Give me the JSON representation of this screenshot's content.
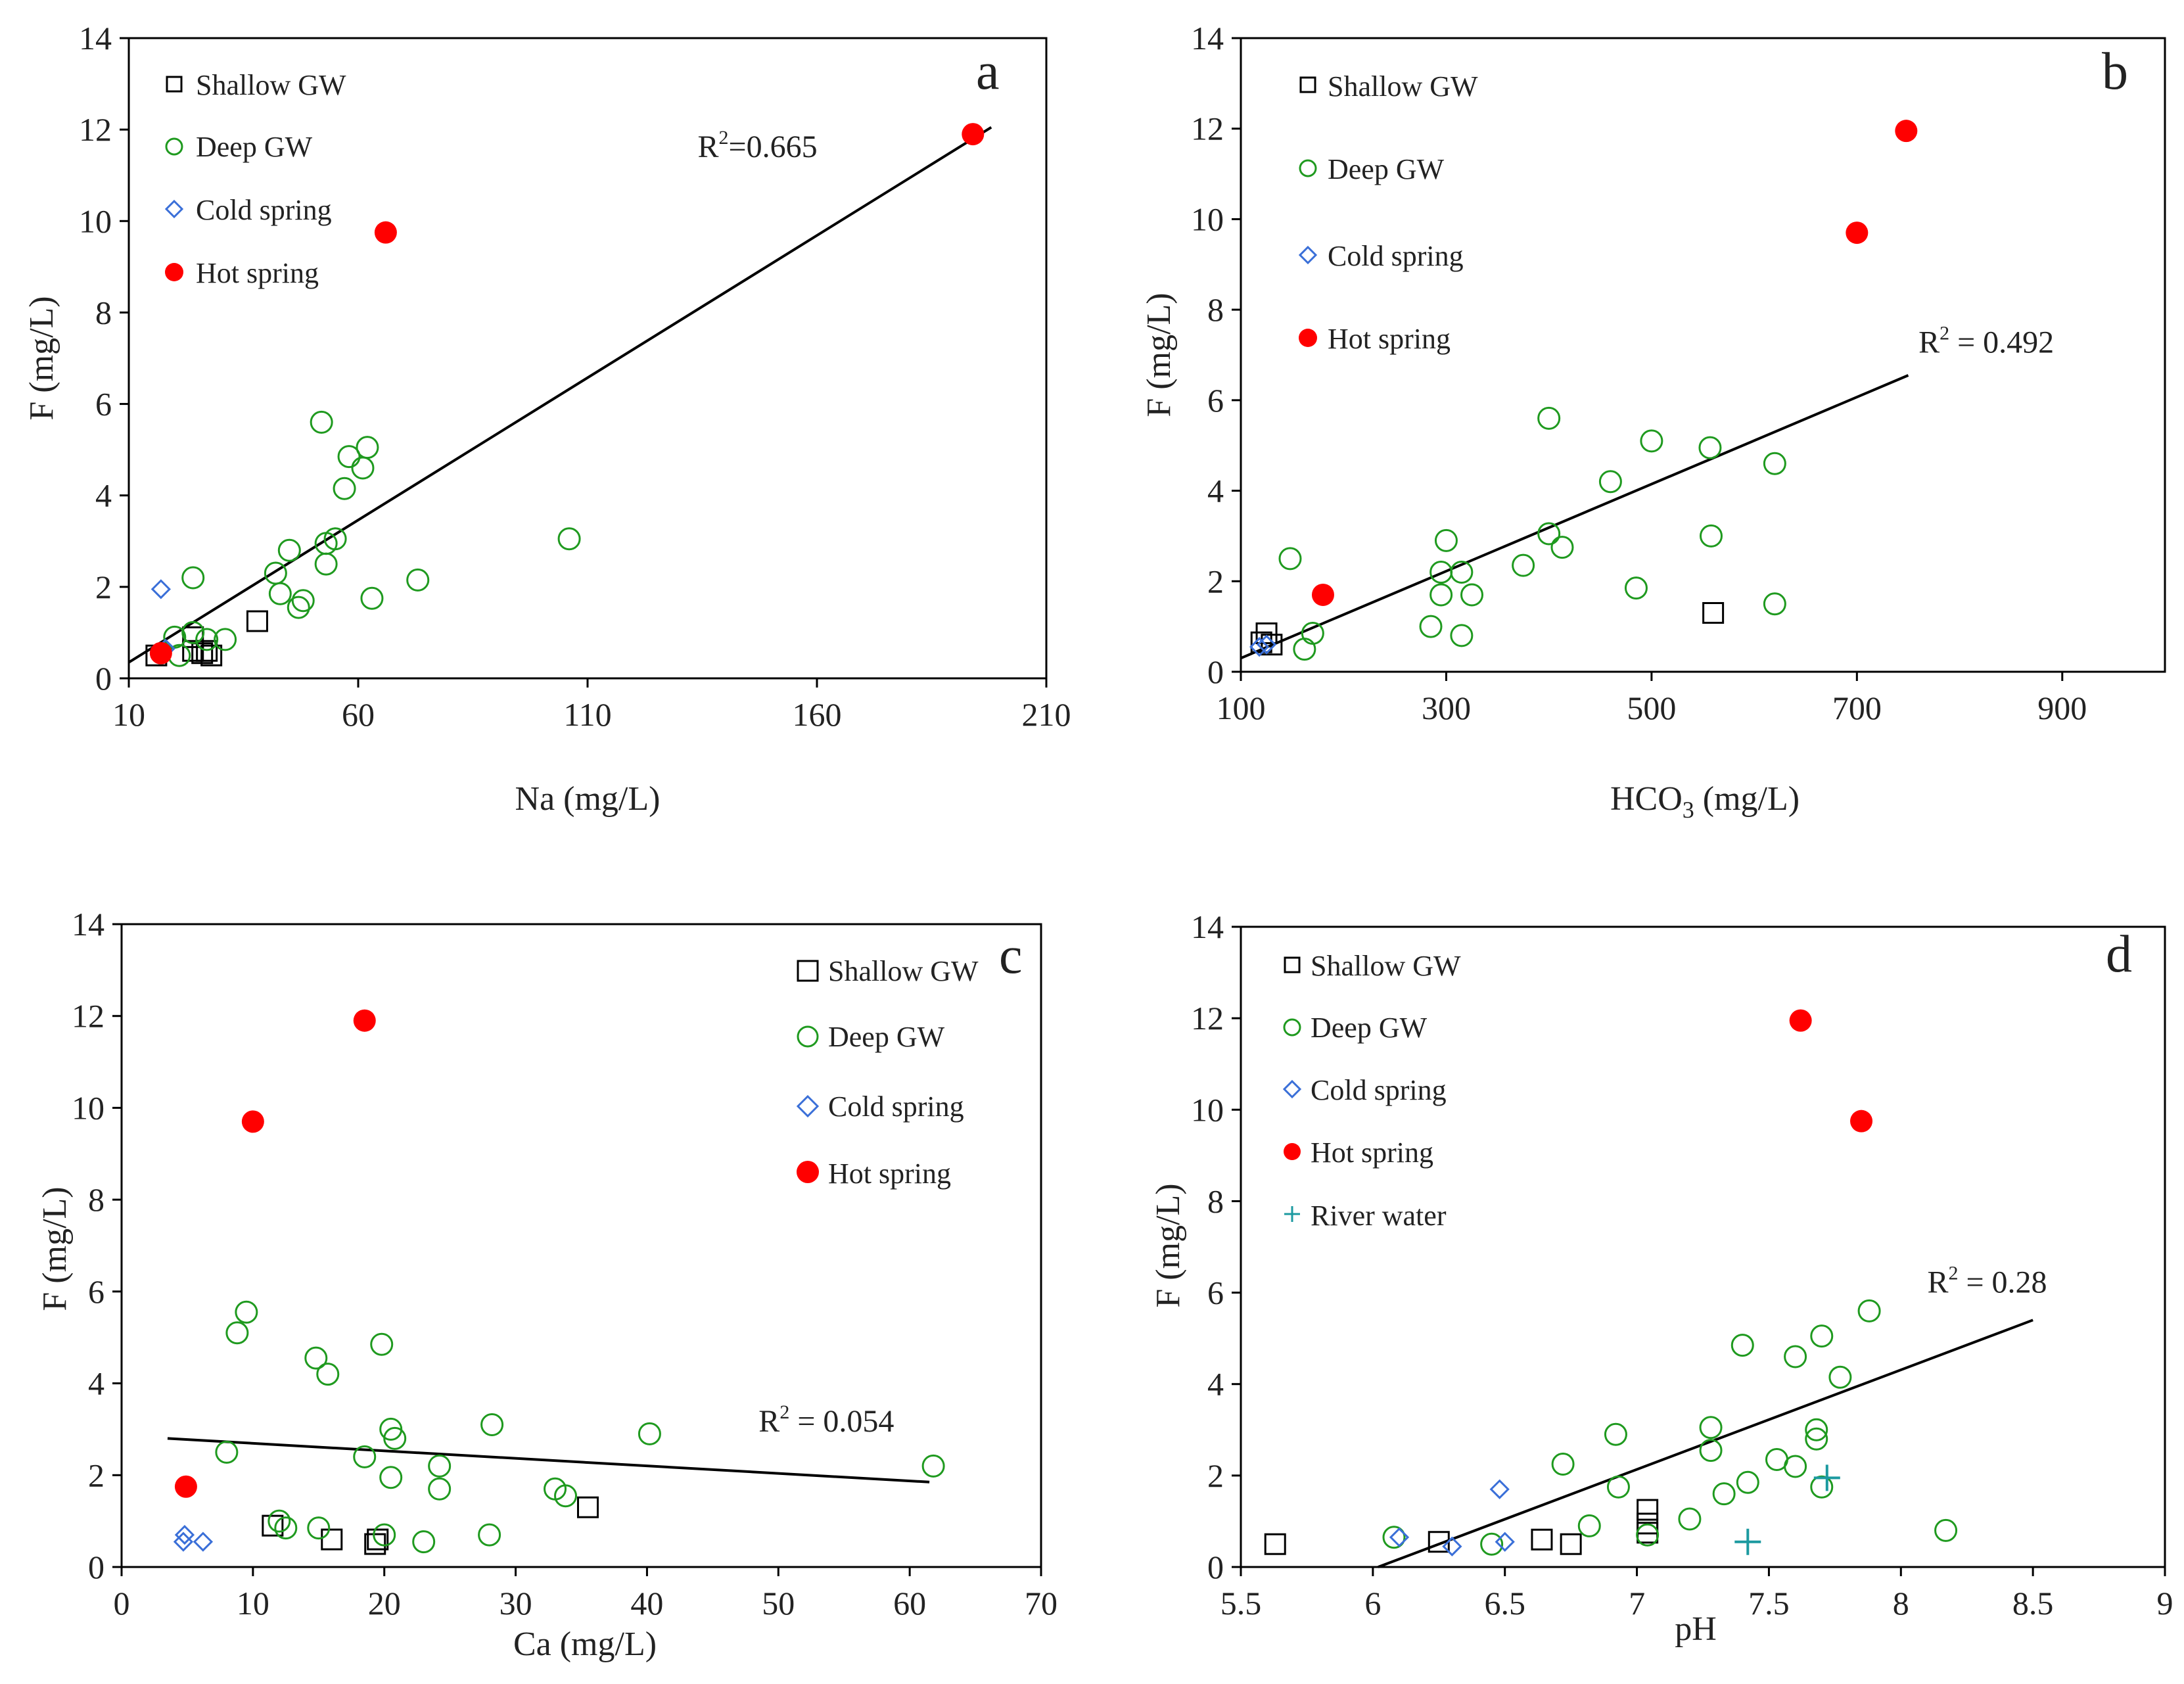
{
  "figure": {
    "description_panels": [
      "a",
      "b",
      "c",
      "d"
    ]
  },
  "colors": {
    "shallow": "#000000",
    "deep": "#1f9a1f",
    "cold": "#3a6fd8",
    "hot": "#ff0000",
    "river": "#1c9aa0",
    "line": "#000000",
    "axis": "#000000"
  },
  "chart_data": [
    {
      "id": "a",
      "type": "scatter",
      "panel_label": "a",
      "xlabel": "Na (mg/L)",
      "ylabel": "F (mg/L)",
      "xlim": [
        10,
        210
      ],
      "ylim": [
        0,
        14
      ],
      "xticks": [
        10,
        60,
        110,
        160,
        210
      ],
      "xtick_labels": [
        "10",
        "60",
        "110",
        "160",
        "210"
      ],
      "yticks": [
        0,
        2,
        4,
        6,
        8,
        10,
        12,
        14
      ],
      "ytick_labels": [
        "0",
        "2",
        "4",
        "6",
        "8",
        "10",
        "12",
        "14"
      ],
      "legend_position": "top-left",
      "legend": [
        "Shallow GW",
        "Deep GW",
        "Cold spring",
        "Hot spring"
      ],
      "series": [
        {
          "name": "Shallow GW",
          "marker": "square",
          "points": [
            [
              16,
              0.5
            ],
            [
              26,
              0.55
            ],
            [
              27,
              0.6
            ],
            [
              28,
              0.5
            ],
            [
              24,
              0.6
            ],
            [
              38,
              1.25
            ],
            [
              24,
              0.9
            ]
          ]
        },
        {
          "name": "Deep GW",
          "marker": "circle",
          "points": [
            [
              52,
              5.6
            ],
            [
              58,
              4.85
            ],
            [
              62,
              5.05
            ],
            [
              61,
              4.6
            ],
            [
              57,
              4.15
            ],
            [
              55,
              3.05
            ],
            [
              53,
              2.95
            ],
            [
              45,
              2.8
            ],
            [
              42,
              2.3
            ],
            [
              53,
              2.5
            ],
            [
              48,
              1.7
            ],
            [
              47,
              1.55
            ],
            [
              43,
              1.85
            ],
            [
              63,
              1.75
            ],
            [
              73,
              2.15
            ],
            [
              106,
              3.05
            ],
            [
              24,
              2.2
            ],
            [
              20,
              0.9
            ],
            [
              24,
              1.0
            ],
            [
              27,
              0.85
            ],
            [
              31,
              0.85
            ],
            [
              21,
              0.5
            ]
          ]
        },
        {
          "name": "Cold spring",
          "marker": "diamond",
          "points": [
            [
              17,
              1.95
            ],
            [
              18,
              0.65
            ]
          ]
        },
        {
          "name": "Hot spring",
          "marker": "filled-circle",
          "points": [
            [
              194,
              11.9
            ],
            [
              66,
              9.75
            ],
            [
              17,
              0.55
            ]
          ]
        }
      ],
      "trendline": {
        "x1": 10,
        "y1": 0.35,
        "x2": 198,
        "y2": 12.05,
        "label": "R",
        "sup": "2",
        "suffix": "=0.665",
        "label_x": 134,
        "label_y": 11.4
      }
    },
    {
      "id": "b",
      "type": "scatter",
      "panel_label": "b",
      "xlabel": "HCO3 (mg/L)",
      "xlabel_main": "HCO",
      "xlabel_sub": "3",
      "xlabel_tail": " (mg/L)",
      "ylabel": "F (mg/L)",
      "xlim": [
        100,
        1000
      ],
      "ylim": [
        0,
        14
      ],
      "xticks": [
        100,
        300,
        500,
        700,
        900
      ],
      "xtick_labels": [
        "100",
        "300",
        "500",
        "700",
        "900"
      ],
      "yticks": [
        0,
        2,
        4,
        6,
        8,
        10,
        12,
        14
      ],
      "ytick_labels": [
        "0",
        "2",
        "4",
        "6",
        "8",
        "10",
        "12",
        "14"
      ],
      "legend_position": "top-left",
      "legend": [
        "Shallow GW",
        "Deep GW",
        "Cold spring",
        "Hot spring"
      ],
      "series": [
        {
          "name": "Shallow GW",
          "marker": "square",
          "points": [
            [
              560,
              1.3
            ],
            [
              125,
              0.85
            ],
            [
              120,
              0.65
            ],
            [
              130,
              0.6
            ]
          ]
        },
        {
          "name": "Deep GW",
          "marker": "circle",
          "points": [
            [
              400,
              5.6
            ],
            [
              500,
              5.1
            ],
            [
              557,
              4.95
            ],
            [
              460,
              4.2
            ],
            [
              620,
              4.6
            ],
            [
              400,
              3.05
            ],
            [
              558,
              3.0
            ],
            [
              300,
              2.9
            ],
            [
              148,
              2.5
            ],
            [
              375,
              2.35
            ],
            [
              413,
              2.75
            ],
            [
              295,
              2.2
            ],
            [
              315,
              2.2
            ],
            [
              295,
              1.7
            ],
            [
              325,
              1.7
            ],
            [
              485,
              1.85
            ],
            [
              620,
              1.5
            ],
            [
              285,
              1.0
            ],
            [
              315,
              0.8
            ],
            [
              170,
              0.85
            ],
            [
              162,
              0.5
            ]
          ]
        },
        {
          "name": "Cold spring",
          "marker": "diamond",
          "points": [
            [
              118,
              0.55
            ],
            [
              125,
              0.6
            ]
          ]
        },
        {
          "name": "Hot spring",
          "marker": "filled-circle",
          "points": [
            [
              748,
              11.95
            ],
            [
              700,
              9.7
            ],
            [
              180,
              1.7
            ]
          ]
        }
      ],
      "trendline": {
        "x1": 100,
        "y1": 0.3,
        "x2": 750,
        "y2": 6.55,
        "label": "R",
        "sup": "2",
        "suffix": " = 0.492",
        "label_x": 760,
        "label_y": 7.05
      }
    },
    {
      "id": "c",
      "type": "scatter",
      "panel_label": "c",
      "xlabel": "Ca (mg/L)",
      "ylabel": "F (mg/L)",
      "xlim": [
        0,
        70
      ],
      "ylim": [
        0,
        14
      ],
      "xticks": [
        0,
        10,
        20,
        30,
        40,
        50,
        60,
        70
      ],
      "xtick_labels": [
        "0",
        "10",
        "20",
        "30",
        "40",
        "50",
        "60",
        "70"
      ],
      "yticks": [
        0,
        2,
        4,
        6,
        8,
        10,
        12,
        14
      ],
      "ytick_labels": [
        "0",
        "2",
        "4",
        "6",
        "8",
        "10",
        "12",
        "14"
      ],
      "legend_position": "top-right",
      "legend": [
        "Shallow GW",
        "Deep GW",
        "Cold spring",
        "Hot spring"
      ],
      "series": [
        {
          "name": "Shallow GW",
          "marker": "square",
          "points": [
            [
              11.5,
              0.9
            ],
            [
              16,
              0.6
            ],
            [
              19.5,
              0.6
            ],
            [
              19.3,
              0.5
            ],
            [
              35.5,
              1.3
            ]
          ]
        },
        {
          "name": "Deep GW",
          "marker": "circle",
          "points": [
            [
              9.5,
              5.55
            ],
            [
              8.8,
              5.1
            ],
            [
              14.8,
              4.55
            ],
            [
              15.7,
              4.2
            ],
            [
              19.8,
              4.85
            ],
            [
              20.5,
              3.0
            ],
            [
              20.8,
              2.8
            ],
            [
              28.2,
              3.1
            ],
            [
              40.2,
              2.9
            ],
            [
              61.8,
              2.2
            ],
            [
              8,
              2.5
            ],
            [
              18.5,
              2.4
            ],
            [
              24.2,
              2.2
            ],
            [
              20.5,
              1.95
            ],
            [
              24.2,
              1.7
            ],
            [
              33,
              1.7
            ],
            [
              33.8,
              1.55
            ],
            [
              12,
              1.0
            ],
            [
              12.5,
              0.85
            ],
            [
              15,
              0.85
            ],
            [
              20,
              0.7
            ],
            [
              23,
              0.55
            ],
            [
              28,
              0.7
            ]
          ]
        },
        {
          "name": "Cold spring",
          "marker": "diamond",
          "points": [
            [
              4.7,
              0.55
            ],
            [
              4.8,
              0.7
            ],
            [
              6.2,
              0.55
            ]
          ]
        },
        {
          "name": "Hot spring",
          "marker": "filled-circle",
          "points": [
            [
              18.5,
              11.9
            ],
            [
              10,
              9.7
            ],
            [
              4.9,
              1.75
            ]
          ]
        }
      ],
      "trendline": {
        "x1": 3.5,
        "y1": 2.8,
        "x2": 61.5,
        "y2": 1.85,
        "label": "R",
        "sup": "2",
        "suffix": " = 0.054",
        "label_x": 48.5,
        "label_y": 2.95
      }
    },
    {
      "id": "d",
      "type": "scatter",
      "panel_label": "d",
      "xlabel": "pH",
      "ylabel": "F (mg/L)",
      "xlim": [
        5.5,
        9
      ],
      "ylim": [
        0,
        14
      ],
      "xticks": [
        5.5,
        6,
        6.5,
        7,
        7.5,
        8,
        8.5,
        9
      ],
      "xtick_labels": [
        "5.5",
        "6",
        "6.5",
        "7",
        "7.5",
        "8",
        "8.5",
        "9"
      ],
      "yticks": [
        0,
        2,
        4,
        6,
        8,
        10,
        12,
        14
      ],
      "ytick_labels": [
        "0",
        "2",
        "4",
        "6",
        "8",
        "10",
        "12",
        "14"
      ],
      "legend_position": "top-left",
      "legend": [
        "Shallow GW",
        "Deep GW",
        "Cold spring",
        "Hot spring",
        "River water"
      ],
      "series": [
        {
          "name": "Shallow GW",
          "marker": "square",
          "points": [
            [
              5.63,
              0.5
            ],
            [
              6.25,
              0.55
            ],
            [
              6.64,
              0.6
            ],
            [
              6.75,
              0.5
            ],
            [
              7.04,
              1.25
            ],
            [
              7.04,
              0.95
            ],
            [
              7.04,
              0.75
            ]
          ]
        },
        {
          "name": "Deep GW",
          "marker": "circle",
          "points": [
            [
              7.88,
              5.6
            ],
            [
              7.7,
              5.05
            ],
            [
              7.4,
              4.85
            ],
            [
              7.6,
              4.6
            ],
            [
              7.77,
              4.15
            ],
            [
              7.68,
              3.0
            ],
            [
              7.68,
              2.8
            ],
            [
              7.28,
              3.05
            ],
            [
              6.92,
              2.9
            ],
            [
              7.28,
              2.55
            ],
            [
              6.72,
              2.25
            ],
            [
              7.53,
              2.35
            ],
            [
              7.6,
              2.2
            ],
            [
              7.42,
              1.85
            ],
            [
              6.93,
              1.75
            ],
            [
              7.33,
              1.6
            ],
            [
              7.7,
              1.75
            ],
            [
              7.2,
              1.05
            ],
            [
              6.82,
              0.9
            ],
            [
              7.04,
              0.7
            ],
            [
              6.45,
              0.5
            ],
            [
              6.08,
              0.65
            ],
            [
              8.17,
              0.8
            ]
          ]
        },
        {
          "name": "Cold spring",
          "marker": "diamond",
          "points": [
            [
              6.48,
              1.7
            ],
            [
              6.1,
              0.65
            ],
            [
              6.3,
              0.45
            ],
            [
              6.5,
              0.55
            ]
          ]
        },
        {
          "name": "Hot spring",
          "marker": "filled-circle",
          "points": [
            [
              7.62,
              11.95
            ],
            [
              7.85,
              9.75
            ]
          ]
        },
        {
          "name": "River water",
          "marker": "plus",
          "points": [
            [
              7.72,
              1.95
            ],
            [
              7.42,
              0.55
            ]
          ]
        }
      ],
      "trendline": {
        "x1": 6.02,
        "y1": 0.0,
        "x2": 8.5,
        "y2": 5.4,
        "label": "R",
        "sup": "2",
        "suffix": " = 0.28",
        "label_x": 8.1,
        "label_y": 6.0
      }
    }
  ]
}
